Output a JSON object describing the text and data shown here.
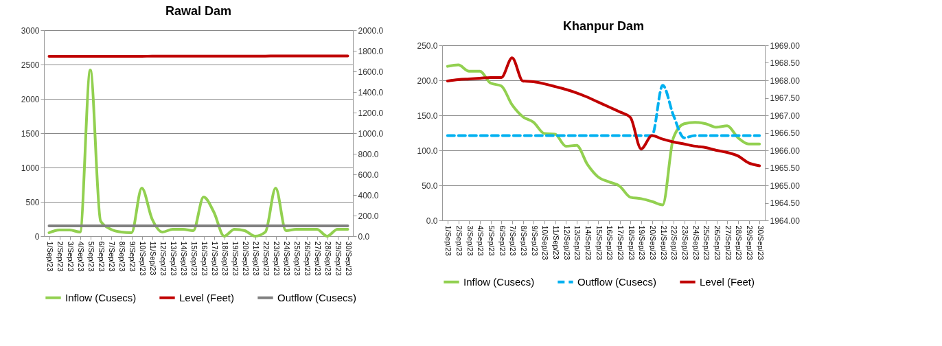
{
  "chart_data": [
    {
      "type": "line",
      "title": "Rawal Dam",
      "categories": [
        "1/Sep/23",
        "2/Sep/23",
        "3/Sep/23",
        "4/Sep/23",
        "5/Sep/23",
        "6/Sep/23",
        "7/Sep/23",
        "8/Sep/23",
        "9/Sep/23",
        "10/Sep/23",
        "11/Sep/23",
        "12/Sep/23",
        "13/Sep/23",
        "14/Sep/23",
        "15/Sep/23",
        "16/Sep/23",
        "17/Sep/23",
        "18/Sep/23",
        "19/Sep/23",
        "20/Sep/23",
        "21/Sep/23",
        "22/Sep/23",
        "23/Sep/23",
        "24/Sep/23",
        "25/Sep/23",
        "26/Sep/23",
        "27/Sep/23",
        "28/Sep/23",
        "29/Sep/23",
        "30/Sep/23"
      ],
      "ylim": [
        0,
        3000
      ],
      "yticks": [
        0,
        500,
        1000,
        1500,
        2000,
        2500,
        3000
      ],
      "y2lim": [
        0,
        2000
      ],
      "y2ticks": [
        {
          "value": 0,
          "label": "0.0"
        },
        {
          "value": 200,
          "label": "200.0"
        },
        {
          "value": 400,
          "label": "400.0"
        },
        {
          "value": 600,
          "label": "600.0"
        },
        {
          "value": 800,
          "label": "800.0"
        },
        {
          "value": 1000,
          "label": "1000.0"
        },
        {
          "value": 1200,
          "label": "1200.0"
        },
        {
          "value": 1400,
          "label": "1400.0"
        },
        {
          "value": 1600,
          "label": "1600.0"
        },
        {
          "value": 1800,
          "label": "1800.0"
        },
        {
          "value": 2000,
          "label": "2000.0"
        }
      ],
      "grid": "y",
      "legend": "bottom",
      "series": [
        {
          "name": "Inflow (Cusecs)",
          "color": "#92d050",
          "values": [
            50,
            90,
            90,
            60,
            2420,
            220,
            100,
            60,
            50,
            700,
            250,
            60,
            100,
            100,
            80,
            570,
            350,
            0,
            100,
            80,
            0,
            60,
            700,
            80,
            100,
            100,
            100,
            0,
            100,
            100
          ]
        },
        {
          "name": "Level (Feet)",
          "color": "#c00000",
          "axis": "y2",
          "values": [
            1746,
            1746,
            1746,
            1746,
            1746,
            1746,
            1747,
            1747,
            1747,
            1747,
            1748,
            1748,
            1748,
            1748,
            1748,
            1749,
            1749,
            1749,
            1749,
            1749,
            1749,
            1749,
            1750,
            1750,
            1750,
            1750,
            1750,
            1750,
            1750,
            1750
          ]
        },
        {
          "name": "Outflow (Cusecs)",
          "color": "#808080",
          "values": [
            150,
            150,
            150,
            150,
            150,
            150,
            150,
            150,
            150,
            150,
            150,
            150,
            150,
            150,
            150,
            150,
            150,
            150,
            150,
            150,
            150,
            150,
            150,
            150,
            150,
            150,
            150,
            150,
            150,
            150
          ]
        }
      ]
    },
    {
      "type": "line",
      "title": "Khanpur Dam",
      "categories": [
        "1/Sep/23",
        "2/Sep/23",
        "3/Sep/23",
        "4/Sep/23",
        "5/Sep/23",
        "6/Sep/23",
        "7/Sep/23",
        "8/Sep/23",
        "9/Sep/23",
        "10/Sep/23",
        "11/Sep/23",
        "12/Sep/23",
        "13/Sep/23",
        "14/Sep/23",
        "15/Sep/23",
        "16/Sep/23",
        "17/Sep/23",
        "18/Sep/23",
        "19/Sep/23",
        "20/Sep/23",
        "21/Sep/23",
        "22/Sep/23",
        "23/Sep/23",
        "24/Sep/23",
        "25/Sep/23",
        "26/Sep/23",
        "27/Sep/23",
        "28/Sep/23",
        "29/Sep/23",
        "30/Sep/23"
      ],
      "ylim": [
        0,
        250
      ],
      "yticks": [
        {
          "value": 0,
          "label": "0.0"
        },
        {
          "value": 50,
          "label": "50.0"
        },
        {
          "value": 100,
          "label": "100.0"
        },
        {
          "value": 150,
          "label": "150.0"
        },
        {
          "value": 200,
          "label": "200.0"
        },
        {
          "value": 250,
          "label": "250.0"
        }
      ],
      "y2lim": [
        1964,
        1969
      ],
      "y2ticks": [
        {
          "value": 1964,
          "label": "1964.00"
        },
        {
          "value": 1964.5,
          "label": "1964.50"
        },
        {
          "value": 1965,
          "label": "1965.00"
        },
        {
          "value": 1965.5,
          "label": "1965.50"
        },
        {
          "value": 1966,
          "label": "1966.00"
        },
        {
          "value": 1966.5,
          "label": "1966.50"
        },
        {
          "value": 1967,
          "label": "1967.00"
        },
        {
          "value": 1967.5,
          "label": "1967.50"
        },
        {
          "value": 1968,
          "label": "1968.00"
        },
        {
          "value": 1968.5,
          "label": "1968.50"
        },
        {
          "value": 1969,
          "label": "1969.00"
        }
      ],
      "grid": "y",
      "legend": "bottom",
      "series": [
        {
          "name": "Inflow (Cusecs)",
          "color": "#92d050",
          "values": [
            220,
            222,
            213,
            213,
            196,
            192,
            165,
            148,
            140,
            124,
            123,
            106,
            107,
            80,
            62,
            55,
            49,
            33,
            31,
            27,
            22,
            118,
            138,
            140,
            138,
            133,
            135,
            118,
            109,
            109
          ]
        },
        {
          "name": "Outflow (Cusecs)",
          "color": "#00b0f0",
          "line_style": "dashed",
          "values": [
            121,
            121,
            121,
            121,
            121,
            121,
            121,
            121,
            121,
            121,
            121,
            121,
            121,
            121,
            121,
            121,
            121,
            121,
            121,
            121,
            193,
            150,
            118,
            121,
            121,
            121,
            121,
            121,
            121,
            121
          ]
        },
        {
          "name": "Level (Feet)",
          "color": "#c00000",
          "axis": "y2",
          "values": [
            1967.98,
            1968.02,
            1968.04,
            1968.06,
            1968.08,
            1968.08,
            1968.64,
            1967.98,
            1967.96,
            1967.9,
            1967.82,
            1967.74,
            1967.64,
            1967.52,
            1967.38,
            1967.24,
            1967.1,
            1966.94,
            1966.04,
            1966.42,
            1966.32,
            1966.24,
            1966.18,
            1966.12,
            1966.08,
            1966.0,
            1965.94,
            1965.84,
            1965.64,
            1965.56
          ]
        }
      ]
    }
  ]
}
